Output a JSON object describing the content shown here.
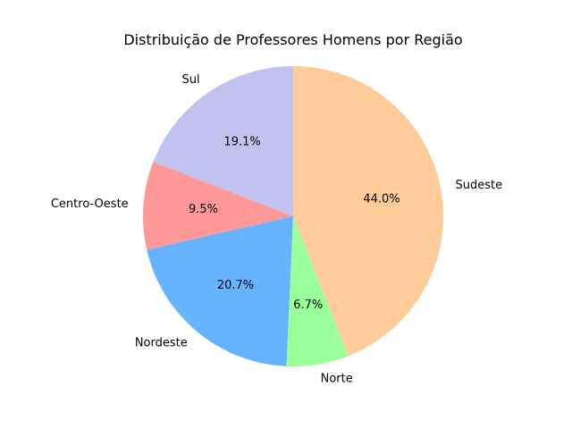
{
  "chart_data": {
    "type": "pie",
    "title": "Distribuição de Professores Homens por Região",
    "start_angle_deg": 90,
    "direction": "counterclockwise",
    "slices": [
      {
        "label": "Sul",
        "value": 19.1,
        "pct_label": "19.1%",
        "color": "#c2c2f0"
      },
      {
        "label": "Centro-Oeste",
        "value": 9.5,
        "pct_label": "9.5%",
        "color": "#ff9999"
      },
      {
        "label": "Nordeste",
        "value": 20.7,
        "pct_label": "20.7%",
        "color": "#66b3ff"
      },
      {
        "label": "Norte",
        "value": 6.7,
        "pct_label": "6.7%",
        "color": "#99ff99"
      },
      {
        "label": "Sudeste",
        "value": 44.0,
        "pct_label": "44.0%",
        "color": "#ffcc99"
      }
    ]
  }
}
